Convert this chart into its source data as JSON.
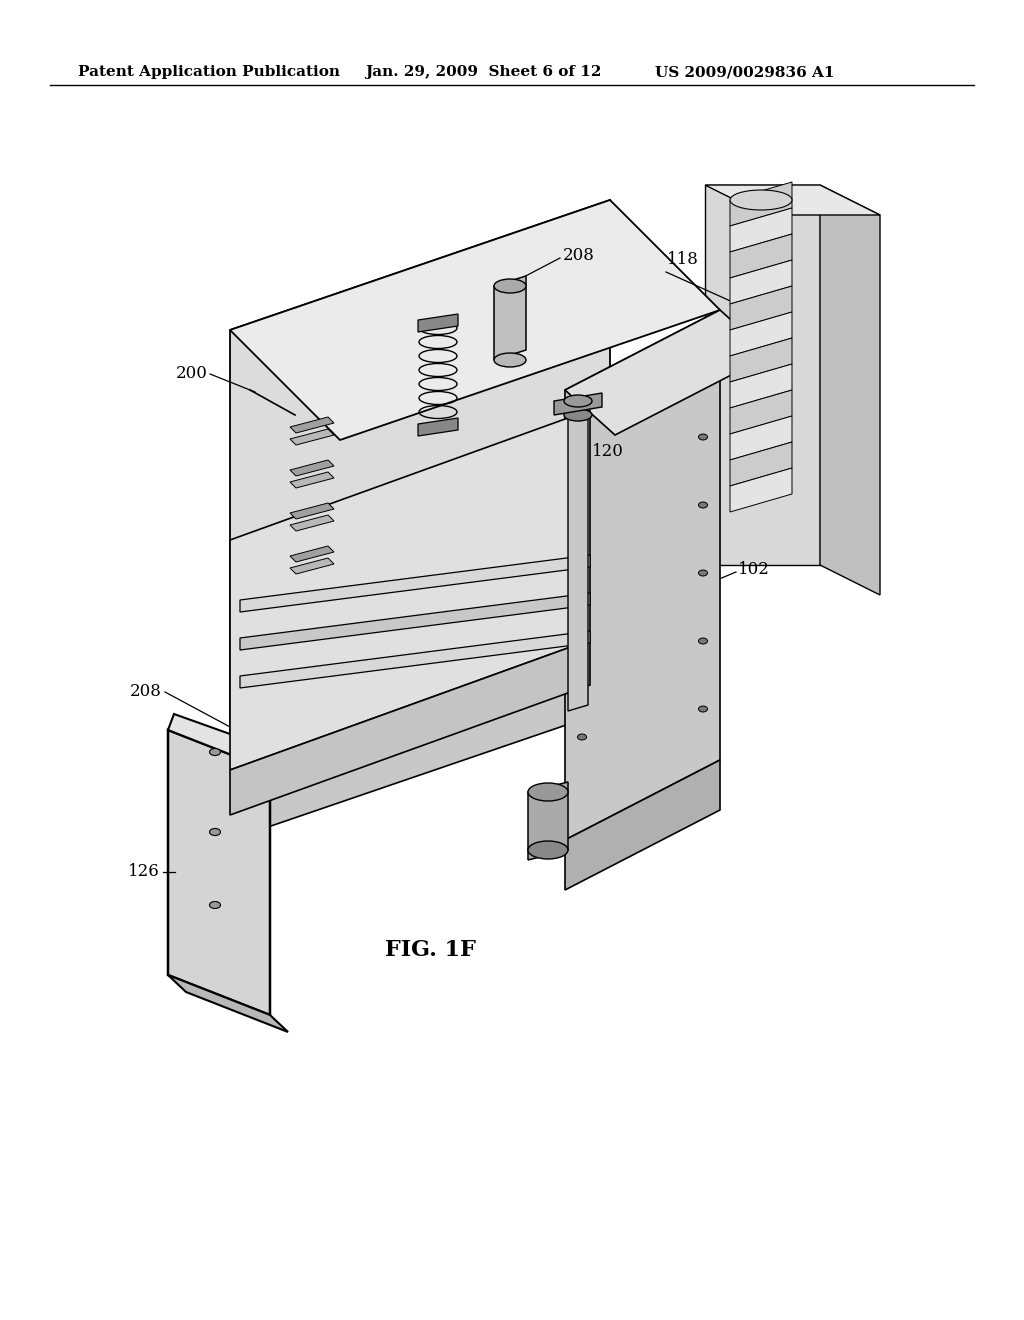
{
  "background_color": "#ffffff",
  "header_left": "Patent Application Publication",
  "header_mid": "Jan. 29, 2009  Sheet 6 of 12",
  "header_right": "US 2009/0029836 A1",
  "figure_label": "FIG. 1F",
  "labels": {
    "208_top": "208",
    "118": "118",
    "120": "120",
    "200": "200",
    "102": "102",
    "208_left": "208",
    "126": "126"
  },
  "header_fontsize": 11,
  "label_fontsize": 12,
  "fig_label_fontsize": 16
}
